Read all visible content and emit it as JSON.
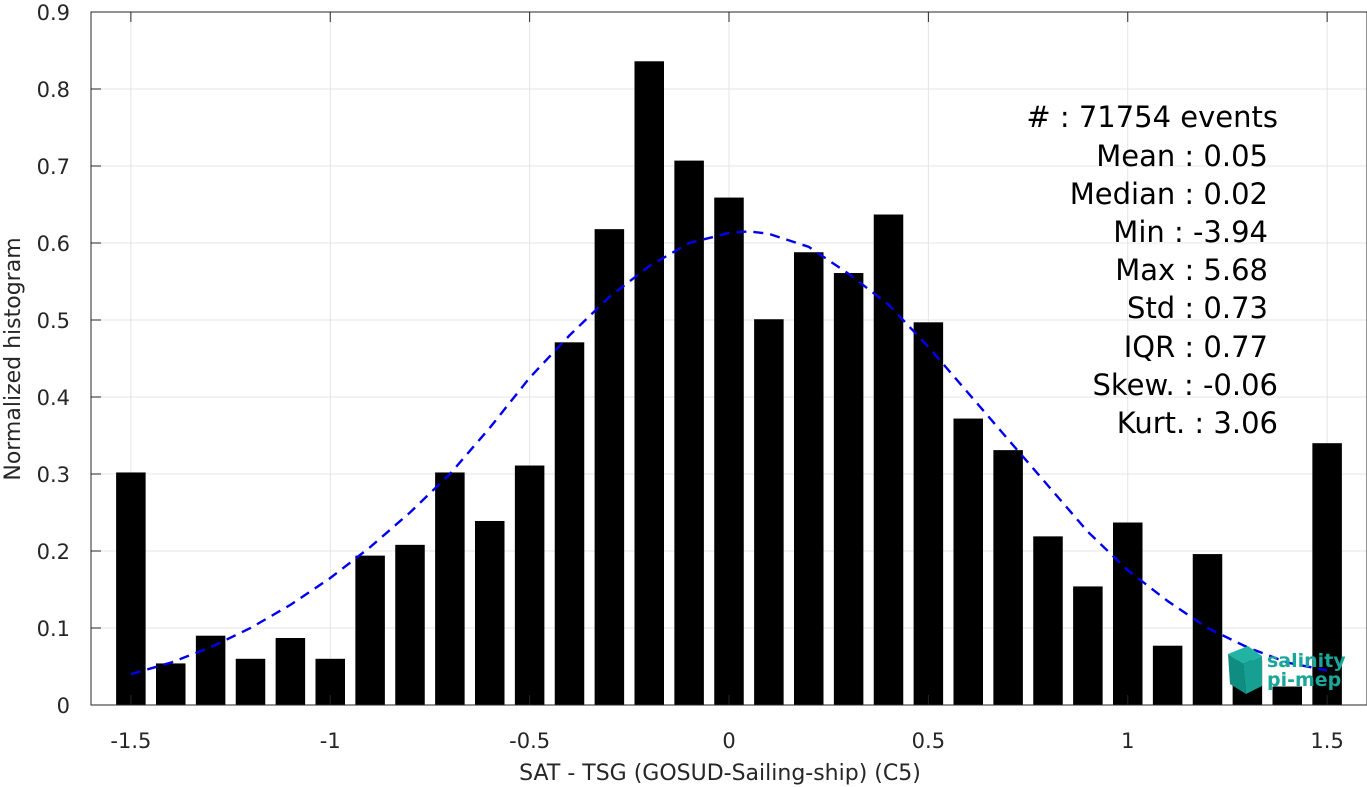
{
  "chart_data": {
    "type": "bar",
    "xlabel": "SAT - TSG (GOSUD-Sailing-ship) (C5)",
    "ylabel": "Normalized histogram",
    "xlim": [
      -1.6,
      1.6
    ],
    "ylim": [
      0,
      0.9
    ],
    "grid": true,
    "xticks": [
      -1.5,
      -1,
      -0.5,
      0,
      0.5,
      1,
      1.5
    ],
    "xtick_labels": [
      "-1.5",
      "-1",
      "-0.5",
      "0",
      "0.5",
      "1",
      "1.5"
    ],
    "yticks": [
      0,
      0.1,
      0.2,
      0.3,
      0.4,
      0.5,
      0.6,
      0.7,
      0.8,
      0.9
    ],
    "ytick_labels": [
      "0",
      "0.1",
      "0.2",
      "0.3",
      "0.4",
      "0.5",
      "0.6",
      "0.7",
      "0.8",
      "0.9"
    ],
    "bin_width": 0.1,
    "bar_color": "#000000",
    "bins": [
      {
        "x": -1.5,
        "value": 0.302
      },
      {
        "x": -1.4,
        "value": 0.054
      },
      {
        "x": -1.3,
        "value": 0.09
      },
      {
        "x": -1.2,
        "value": 0.06
      },
      {
        "x": -1.1,
        "value": 0.087
      },
      {
        "x": -1.0,
        "value": 0.06
      },
      {
        "x": -0.9,
        "value": 0.194
      },
      {
        "x": -0.8,
        "value": 0.208
      },
      {
        "x": -0.7,
        "value": 0.302
      },
      {
        "x": -0.6,
        "value": 0.239
      },
      {
        "x": -0.5,
        "value": 0.311
      },
      {
        "x": -0.4,
        "value": 0.471
      },
      {
        "x": -0.3,
        "value": 0.618
      },
      {
        "x": -0.2,
        "value": 0.836
      },
      {
        "x": -0.1,
        "value": 0.707
      },
      {
        "x": 0.0,
        "value": 0.659
      },
      {
        "x": 0.1,
        "value": 0.501
      },
      {
        "x": 0.2,
        "value": 0.588
      },
      {
        "x": 0.3,
        "value": 0.561
      },
      {
        "x": 0.4,
        "value": 0.637
      },
      {
        "x": 0.5,
        "value": 0.497
      },
      {
        "x": 0.6,
        "value": 0.372
      },
      {
        "x": 0.7,
        "value": 0.331
      },
      {
        "x": 0.8,
        "value": 0.219
      },
      {
        "x": 0.9,
        "value": 0.154
      },
      {
        "x": 1.0,
        "value": 0.237
      },
      {
        "x": 1.1,
        "value": 0.077
      },
      {
        "x": 1.2,
        "value": 0.196
      },
      {
        "x": 1.3,
        "value": 0.058
      },
      {
        "x": 1.4,
        "value": 0.024
      },
      {
        "x": 1.5,
        "value": 0.34
      }
    ],
    "fit_curve": {
      "style": "dashed",
      "color": "#0000ee",
      "x": [
        -1.5,
        -1.4,
        -1.3,
        -1.2,
        -1.1,
        -1.0,
        -0.9,
        -0.8,
        -0.7,
        -0.6,
        -0.5,
        -0.4,
        -0.3,
        -0.2,
        -0.1,
        0.0,
        0.05,
        0.1,
        0.2,
        0.3,
        0.4,
        0.5,
        0.6,
        0.7,
        0.8,
        0.9,
        1.0,
        1.1,
        1.2,
        1.3,
        1.4,
        1.5
      ],
      "y": [
        0.04,
        0.055,
        0.075,
        0.1,
        0.13,
        0.165,
        0.205,
        0.25,
        0.3,
        0.36,
        0.425,
        0.48,
        0.53,
        0.57,
        0.6,
        0.613,
        0.615,
        0.612,
        0.595,
        0.56,
        0.52,
        0.465,
        0.405,
        0.345,
        0.285,
        0.225,
        0.175,
        0.135,
        0.1,
        0.075,
        0.055,
        0.045
      ]
    },
    "annotations": [
      "#  : 71754 events",
      "Mean : 0.05",
      "Median : 0.02",
      "Min : -3.94",
      "Max : 5.68",
      "Std : 0.73",
      "IQR : 0.77",
      "Skew. : -0.06",
      "Kurt. : 3.06"
    ]
  },
  "logo": {
    "line1": "salinity",
    "line2": "pi-mep",
    "color": "#1aa79a"
  }
}
